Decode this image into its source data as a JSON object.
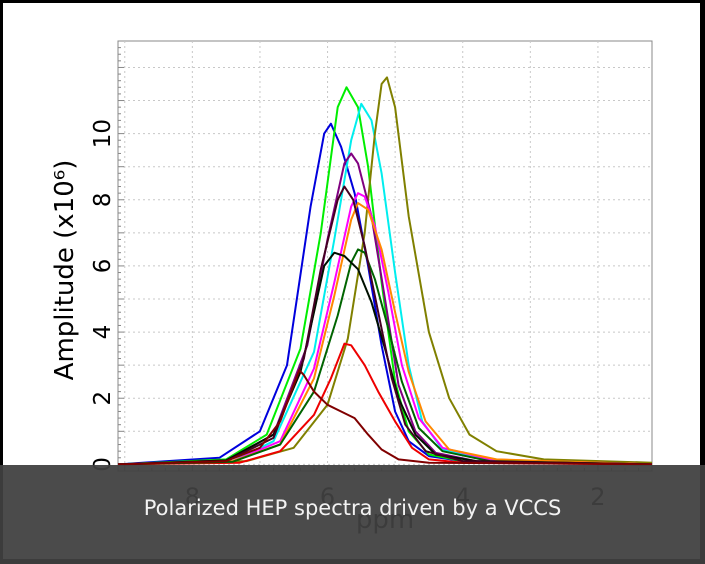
{
  "caption": "Polarized HEP spectra driven by a VCCS",
  "chart_data": {
    "type": "line",
    "xlabel": "ppm",
    "ylabel": "Amplitude (x10⁶)",
    "xlim": [
      9.1,
      1.2
    ],
    "ylim": [
      -0.2,
      12.8
    ],
    "x_ticks": [
      8,
      6,
      4,
      2
    ],
    "y_ticks": [
      0,
      2,
      4,
      6,
      8,
      10
    ],
    "grid": true,
    "series": [
      {
        "color": "#0000dd",
        "points": [
          [
            9.1,
            0.0
          ],
          [
            7.6,
            0.2
          ],
          [
            7.0,
            1.0
          ],
          [
            6.6,
            3.0
          ],
          [
            6.25,
            7.8
          ],
          [
            6.05,
            10.0
          ],
          [
            5.95,
            10.3
          ],
          [
            5.8,
            9.6
          ],
          [
            5.6,
            8.2
          ],
          [
            5.4,
            6.0
          ],
          [
            5.2,
            3.6
          ],
          [
            5.0,
            1.6
          ],
          [
            4.8,
            0.7
          ],
          [
            4.5,
            0.25
          ],
          [
            4.0,
            0.1
          ],
          [
            1.2,
            0.0
          ]
        ]
      },
      {
        "color": "#00ee00",
        "points": [
          [
            9.1,
            0.0
          ],
          [
            7.5,
            0.15
          ],
          [
            6.9,
            0.9
          ],
          [
            6.4,
            3.5
          ],
          [
            6.1,
            7.0
          ],
          [
            5.85,
            10.8
          ],
          [
            5.72,
            11.4
          ],
          [
            5.55,
            10.8
          ],
          [
            5.4,
            9.0
          ],
          [
            5.2,
            5.5
          ],
          [
            5.0,
            2.5
          ],
          [
            4.8,
            1.0
          ],
          [
            4.5,
            0.3
          ],
          [
            4.0,
            0.1
          ],
          [
            1.2,
            0.0
          ]
        ]
      },
      {
        "color": "#00eeee",
        "points": [
          [
            9.1,
            0.0
          ],
          [
            7.4,
            0.1
          ],
          [
            6.8,
            0.7
          ],
          [
            6.2,
            3.4
          ],
          [
            5.9,
            6.8
          ],
          [
            5.65,
            9.8
          ],
          [
            5.5,
            10.9
          ],
          [
            5.35,
            10.4
          ],
          [
            5.2,
            8.8
          ],
          [
            5.0,
            5.8
          ],
          [
            4.8,
            3.0
          ],
          [
            4.6,
            1.3
          ],
          [
            4.3,
            0.45
          ],
          [
            3.5,
            0.1
          ],
          [
            1.2,
            0.0
          ]
        ]
      },
      {
        "color": "#808000",
        "points": [
          [
            9.1,
            0.0
          ],
          [
            7.2,
            0.1
          ],
          [
            6.5,
            0.5
          ],
          [
            6.0,
            1.8
          ],
          [
            5.7,
            3.8
          ],
          [
            5.45,
            7.0
          ],
          [
            5.3,
            10.0
          ],
          [
            5.2,
            11.5
          ],
          [
            5.12,
            11.7
          ],
          [
            5.0,
            10.8
          ],
          [
            4.8,
            7.5
          ],
          [
            4.5,
            4.0
          ],
          [
            4.2,
            2.0
          ],
          [
            3.9,
            0.9
          ],
          [
            3.5,
            0.4
          ],
          [
            2.8,
            0.15
          ],
          [
            1.2,
            0.05
          ]
        ]
      },
      {
        "color": "#800080",
        "points": [
          [
            9.1,
            0.0
          ],
          [
            7.5,
            0.12
          ],
          [
            6.8,
            0.9
          ],
          [
            6.3,
            3.6
          ],
          [
            6.0,
            6.8
          ],
          [
            5.75,
            9.1
          ],
          [
            5.65,
            9.4
          ],
          [
            5.55,
            9.1
          ],
          [
            5.35,
            7.5
          ],
          [
            5.15,
            5.0
          ],
          [
            4.95,
            2.4
          ],
          [
            4.7,
            1.0
          ],
          [
            4.4,
            0.35
          ],
          [
            3.8,
            0.1
          ],
          [
            1.2,
            0.0
          ]
        ]
      },
      {
        "color": "#ff00ff",
        "points": [
          [
            9.1,
            0.0
          ],
          [
            7.4,
            0.1
          ],
          [
            6.7,
            0.7
          ],
          [
            6.2,
            2.9
          ],
          [
            5.9,
            5.5
          ],
          [
            5.65,
            7.8
          ],
          [
            5.55,
            8.2
          ],
          [
            5.45,
            8.1
          ],
          [
            5.3,
            7.2
          ],
          [
            5.1,
            5.2
          ],
          [
            4.9,
            3.0
          ],
          [
            4.65,
            1.4
          ],
          [
            4.3,
            0.5
          ],
          [
            3.6,
            0.15
          ],
          [
            1.2,
            0.0
          ]
        ]
      },
      {
        "color": "#ff8800",
        "points": [
          [
            9.1,
            0.0
          ],
          [
            7.4,
            0.1
          ],
          [
            6.7,
            0.6
          ],
          [
            6.2,
            2.6
          ],
          [
            5.9,
            5.1
          ],
          [
            5.65,
            7.4
          ],
          [
            5.55,
            7.9
          ],
          [
            5.4,
            7.7
          ],
          [
            5.2,
            6.5
          ],
          [
            5.0,
            4.6
          ],
          [
            4.8,
            2.8
          ],
          [
            4.55,
            1.3
          ],
          [
            4.2,
            0.45
          ],
          [
            3.5,
            0.15
          ],
          [
            1.2,
            0.0
          ]
        ]
      },
      {
        "color": "#ee0000",
        "points": [
          [
            9.1,
            0.0
          ],
          [
            7.3,
            0.05
          ],
          [
            6.7,
            0.4
          ],
          [
            6.2,
            1.5
          ],
          [
            5.95,
            2.6
          ],
          [
            5.75,
            3.65
          ],
          [
            5.65,
            3.6
          ],
          [
            5.45,
            3.0
          ],
          [
            5.25,
            2.2
          ],
          [
            5.0,
            1.3
          ],
          [
            4.75,
            0.5
          ],
          [
            4.5,
            0.15
          ],
          [
            4.0,
            0.05
          ],
          [
            1.2,
            0.0
          ]
        ]
      },
      {
        "color": "#006400",
        "points": [
          [
            9.1,
            0.0
          ],
          [
            7.4,
            0.08
          ],
          [
            6.7,
            0.6
          ],
          [
            6.2,
            2.2
          ],
          [
            5.85,
            4.5
          ],
          [
            5.65,
            6.1
          ],
          [
            5.55,
            6.5
          ],
          [
            5.45,
            6.4
          ],
          [
            5.3,
            5.6
          ],
          [
            5.1,
            4.1
          ],
          [
            4.9,
            2.5
          ],
          [
            4.65,
            1.1
          ],
          [
            4.3,
            0.4
          ],
          [
            3.6,
            0.1
          ],
          [
            1.2,
            0.0
          ]
        ]
      },
      {
        "color": "#001100",
        "points": [
          [
            9.1,
            0.0
          ],
          [
            7.5,
            0.12
          ],
          [
            6.8,
            0.9
          ],
          [
            6.4,
            2.8
          ],
          [
            6.2,
            4.6
          ],
          [
            6.05,
            6.0
          ],
          [
            5.9,
            6.4
          ],
          [
            5.75,
            6.3
          ],
          [
            5.55,
            5.9
          ],
          [
            5.35,
            4.9
          ],
          [
            5.15,
            3.5
          ],
          [
            4.95,
            2.0
          ],
          [
            4.7,
            0.9
          ],
          [
            4.4,
            0.3
          ],
          [
            3.8,
            0.1
          ],
          [
            1.2,
            0.0
          ]
        ]
      },
      {
        "color": "#440022",
        "points": [
          [
            9.1,
            0.0
          ],
          [
            7.5,
            0.1
          ],
          [
            6.8,
            0.8
          ],
          [
            6.35,
            3.2
          ],
          [
            6.1,
            5.9
          ],
          [
            5.85,
            8.0
          ],
          [
            5.75,
            8.4
          ],
          [
            5.62,
            8.0
          ],
          [
            5.45,
            6.6
          ],
          [
            5.25,
            4.6
          ],
          [
            5.05,
            2.6
          ],
          [
            4.85,
            1.2
          ],
          [
            4.55,
            0.4
          ],
          [
            4.0,
            0.1
          ],
          [
            1.2,
            0.0
          ]
        ]
      },
      {
        "color": "#800000",
        "points": [
          [
            9.1,
            0.0
          ],
          [
            7.5,
            0.1
          ],
          [
            7.0,
            0.5
          ],
          [
            6.7,
            1.3
          ],
          [
            6.5,
            2.4
          ],
          [
            6.42,
            2.85
          ],
          [
            6.35,
            2.7
          ],
          [
            6.2,
            2.2
          ],
          [
            6.0,
            1.8
          ],
          [
            5.8,
            1.6
          ],
          [
            5.6,
            1.4
          ],
          [
            5.4,
            0.9
          ],
          [
            5.2,
            0.45
          ],
          [
            4.95,
            0.15
          ],
          [
            4.5,
            0.05
          ],
          [
            1.2,
            0.0
          ]
        ]
      }
    ]
  }
}
